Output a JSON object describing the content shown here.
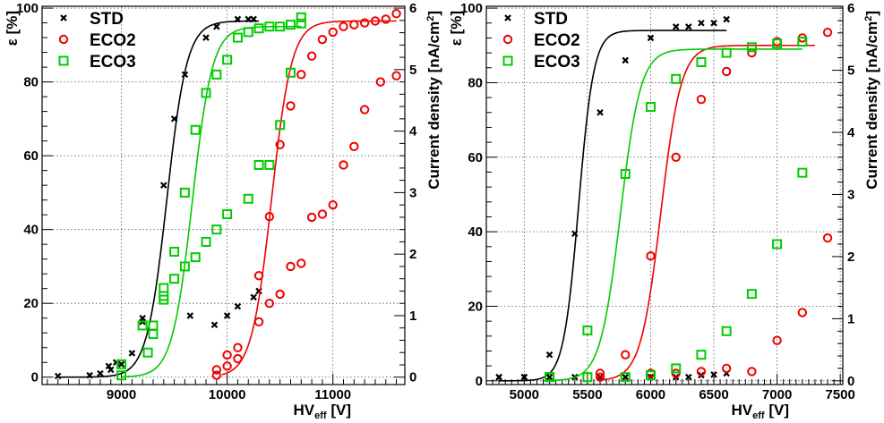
{
  "chart_data": [
    {
      "type": "scatter",
      "xlabel_main": "HV",
      "xlabel_sub": "eff",
      "xlabel_unit": " [V]",
      "ylabel": "ε [%]",
      "y2label_main": "Current density [nA/cm",
      "y2label_sup": "2",
      "y2label_end": "]",
      "xlim": [
        8250,
        11680
      ],
      "ylim": [
        -2,
        100.5
      ],
      "y2lim": [
        -0.12,
        6.03
      ],
      "xticks": [
        9000,
        10000,
        11000
      ],
      "yticks": [
        0,
        20,
        40,
        60,
        80,
        100
      ],
      "y2ticks": [
        0,
        1,
        2,
        3,
        4,
        5,
        6
      ],
      "grid": true,
      "legend_position": "top-left",
      "legend": [
        "STD",
        "ECO2",
        "ECO3"
      ],
      "series": [
        {
          "name": "STD",
          "color": "#000000",
          "marker": "x",
          "efficiency": [
            [
              8400,
              0.3
            ],
            [
              8700,
              0.5
            ],
            [
              8800,
              1.0
            ],
            [
              8880,
              3.0
            ],
            [
              8900,
              2.0
            ],
            [
              8950,
              4.0
            ],
            [
              9000,
              3.5
            ],
            [
              9100,
              6.5
            ],
            [
              9200,
              16
            ],
            [
              9400,
              52
            ],
            [
              9500,
              70
            ],
            [
              9600,
              82
            ],
            [
              9800,
              92
            ],
            [
              9900,
              95
            ],
            [
              10100,
              97
            ],
            [
              10200,
              97
            ],
            [
              10250,
              97
            ]
          ],
          "fit": {
            "plateau": 96.5,
            "hv50": 9430,
            "slope": 95,
            "x_range": [
              8400,
              10300
            ]
          },
          "current_density": [
            [
              9200,
              0.9
            ],
            [
              9650,
              1.0
            ],
            [
              9880,
              0.85
            ],
            [
              10000,
              1.0
            ],
            [
              10100,
              1.15
            ],
            [
              10250,
              1.3
            ],
            [
              10300,
              1.4
            ]
          ]
        },
        {
          "name": "ECO2",
          "color": "#ee0000",
          "marker": "circle",
          "efficiency": [
            [
              9900,
              0.5
            ],
            [
              9900,
              2.0
            ],
            [
              10000,
              3.0
            ],
            [
              10000,
              6.0
            ],
            [
              10100,
              5.0
            ],
            [
              10100,
              8.0
            ],
            [
              10300,
              27.5
            ],
            [
              10400,
              43.5
            ],
            [
              10500,
              63
            ],
            [
              10600,
              73.5
            ],
            [
              10700,
              82
            ],
            [
              10800,
              87
            ],
            [
              10900,
              91.5
            ],
            [
              11000,
              93.5
            ],
            [
              11100,
              95
            ],
            [
              11200,
              95.5
            ],
            [
              11300,
              96
            ],
            [
              11400,
              96.5
            ],
            [
              11500,
              97
            ],
            [
              11600,
              98.5
            ]
          ],
          "fit": {
            "plateau": 96.5,
            "hv50": 10420,
            "slope": 95,
            "x_range": [
              9950,
              11600
            ]
          },
          "current_density": [
            [
              10300,
              0.9
            ],
            [
              10400,
              1.2
            ],
            [
              10500,
              1.35
            ],
            [
              10600,
              1.8
            ],
            [
              10700,
              1.85
            ],
            [
              10800,
              2.6
            ],
            [
              10900,
              2.65
            ],
            [
              11000,
              2.8
            ],
            [
              11100,
              3.45
            ],
            [
              11200,
              3.75
            ],
            [
              11300,
              4.35
            ],
            [
              11450,
              4.8
            ],
            [
              11600,
              4.9
            ]
          ]
        },
        {
          "name": "ECO3",
          "color": "#00cc00",
          "marker": "square",
          "efficiency": [
            [
              9000,
              0.5
            ],
            [
              9000,
              3.5
            ],
            [
              9200,
              14
            ],
            [
              9300,
              14
            ],
            [
              9400,
              21
            ],
            [
              9400,
              22
            ],
            [
              9500,
              34
            ],
            [
              9600,
              50
            ],
            [
              9700,
              67
            ],
            [
              9800,
              77
            ],
            [
              9900,
              82
            ],
            [
              10000,
              86
            ],
            [
              10100,
              92
            ],
            [
              10200,
              93.5
            ],
            [
              10300,
              94.5
            ],
            [
              10400,
              95
            ],
            [
              10500,
              95
            ],
            [
              10600,
              95.5
            ],
            [
              10700,
              97.5
            ]
          ],
          "fit": {
            "plateau": 95.0,
            "hv50": 9670,
            "slope": 95,
            "x_range": [
              9000,
              10700
            ]
          },
          "current_density": [
            [
              9250,
              0.4
            ],
            [
              9300,
              0.7
            ],
            [
              9400,
              1.45
            ],
            [
              9500,
              1.6
            ],
            [
              9600,
              1.8
            ],
            [
              9700,
              1.95
            ],
            [
              9800,
              2.2
            ],
            [
              9900,
              2.4
            ],
            [
              10000,
              2.65
            ],
            [
              10200,
              2.9
            ],
            [
              10300,
              3.45
            ],
            [
              10400,
              3.45
            ],
            [
              10500,
              4.1
            ],
            [
              10600,
              4.95
            ],
            [
              10700,
              5.75
            ]
          ]
        }
      ]
    },
    {
      "type": "scatter",
      "xlabel_main": "HV",
      "xlabel_sub": "eff",
      "xlabel_unit": " [V]",
      "ylabel": "ε [%]",
      "y2label_main": "Current density [nA/cm",
      "y2label_sup": "2",
      "y2label_end": "]",
      "xlim": [
        4700,
        7520
      ],
      "ylim": [
        -1,
        100.5
      ],
      "y2lim": [
        -0.06,
        6.03
      ],
      "xticks": [
        5000,
        5500,
        6000,
        6500,
        7000,
        7500
      ],
      "yticks": [
        0,
        20,
        40,
        60,
        80,
        100
      ],
      "y2ticks": [
        0,
        1,
        2,
        3,
        4,
        5,
        6
      ],
      "grid": true,
      "legend_position": "top-left",
      "legend": [
        "STD",
        "ECO2",
        "ECO3"
      ],
      "series": [
        {
          "name": "STD",
          "color": "#000000",
          "marker": "x",
          "efficiency": [
            [
              4800,
              1
            ],
            [
              5000,
              1
            ],
            [
              5200,
              7
            ],
            [
              5400,
              39.5
            ],
            [
              5600,
              72
            ],
            [
              5800,
              86
            ],
            [
              6000,
              92
            ],
            [
              6200,
              95
            ],
            [
              6300,
              95
            ],
            [
              6400,
              96
            ],
            [
              6500,
              96
            ],
            [
              6600,
              97
            ]
          ],
          "fit": {
            "plateau": 94.0,
            "hv50": 5430,
            "slope": 60,
            "x_range": [
              4800,
              6600
            ]
          },
          "current_density": [
            [
              4800,
              0.06
            ],
            [
              5000,
              0.06
            ],
            [
              5200,
              0.06
            ],
            [
              5400,
              0.06
            ],
            [
              5600,
              0.06
            ],
            [
              5800,
              0.06
            ],
            [
              6000,
              0.06
            ],
            [
              6200,
              0.06
            ],
            [
              6300,
              0.06
            ],
            [
              6400,
              0.09
            ],
            [
              6500,
              0.1
            ],
            [
              6600,
              0.12
            ]
          ]
        },
        {
          "name": "ECO2",
          "color": "#ee0000",
          "marker": "circle",
          "efficiency": [
            [
              5600,
              1
            ],
            [
              5800,
              7
            ],
            [
              6000,
              33.5
            ],
            [
              6200,
              60
            ],
            [
              6400,
              75.5
            ],
            [
              6600,
              83
            ],
            [
              6800,
              88
            ],
            [
              7000,
              91
            ],
            [
              7200,
              92
            ],
            [
              7400,
              93.5
            ]
          ],
          "fit": {
            "plateau": 90.0,
            "hv50": 6080,
            "slope": 80,
            "x_range": [
              5600,
              7300
            ]
          },
          "current_density": [
            [
              5600,
              0.12
            ],
            [
              6000,
              0.12
            ],
            [
              6200,
              0.12
            ],
            [
              6400,
              0.15
            ],
            [
              6600,
              0.2
            ],
            [
              6800,
              0.15
            ],
            [
              7000,
              0.65
            ],
            [
              7200,
              1.1
            ],
            [
              7400,
              2.3
            ]
          ]
        },
        {
          "name": "ECO3",
          "color": "#00cc00",
          "marker": "square",
          "efficiency": [
            [
              5200,
              1
            ],
            [
              5500,
              13.5
            ],
            [
              5800,
              55.5
            ],
            [
              6000,
              73.5
            ],
            [
              6200,
              81
            ],
            [
              6400,
              85.5
            ],
            [
              6600,
              88
            ],
            [
              6800,
              89.5
            ],
            [
              7000,
              90.5
            ],
            [
              7200,
              91
            ]
          ],
          "fit": {
            "plateau": 89.0,
            "hv50": 5760,
            "slope": 80,
            "x_range": [
              5200,
              7200
            ]
          },
          "current_density": [
            [
              5200,
              0.06
            ],
            [
              5500,
              0.06
            ],
            [
              5800,
              0.06
            ],
            [
              6000,
              0.09
            ],
            [
              6200,
              0.2
            ],
            [
              6400,
              0.42
            ],
            [
              6600,
              0.8
            ],
            [
              6800,
              1.4
            ],
            [
              7000,
              2.2
            ],
            [
              7200,
              3.35
            ]
          ]
        }
      ]
    }
  ]
}
